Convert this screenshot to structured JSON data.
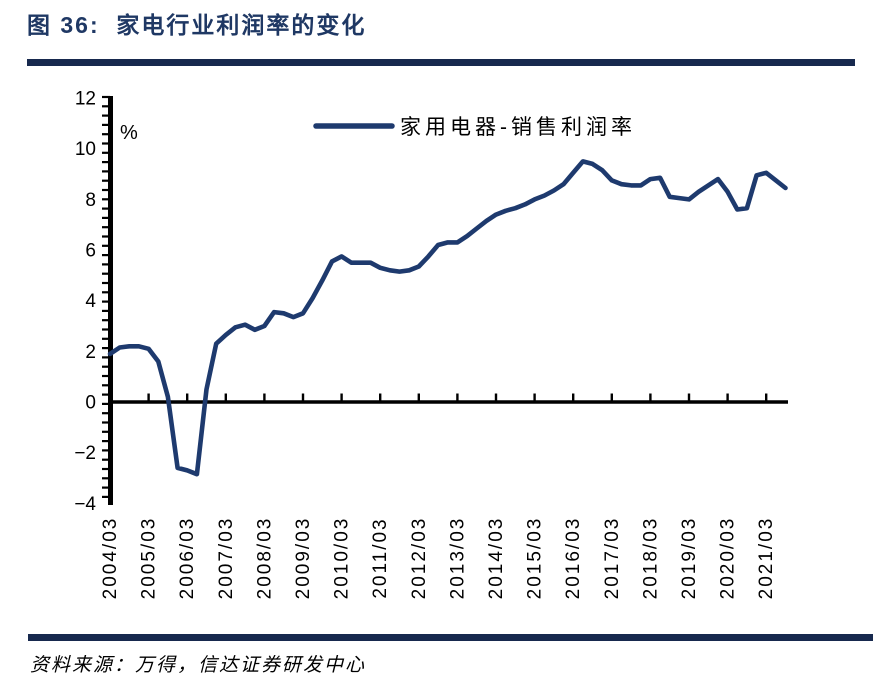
{
  "header": {
    "title": "图 36:  家电行业利润率的变化"
  },
  "footer": {
    "source": "资料来源：万得，信达证券研发中心"
  },
  "colors": {
    "accent_navy": "#1f3864",
    "rule_navy": "#17294e",
    "line_navy": "#1e3a6e",
    "axis_black": "#000000"
  },
  "chart_data": {
    "type": "line",
    "title": "图 36: 家电行业利润率的变化",
    "unit_label": "%",
    "xlabel": "",
    "ylabel": "%",
    "ylim": [
      -4,
      12
    ],
    "y_ticks": [
      -4,
      -2,
      0,
      2,
      4,
      6,
      8,
      10,
      12
    ],
    "grid": false,
    "legend_position": "top-center",
    "x_tick_labels": [
      "2004/03",
      "2005/03",
      "2006/03",
      "2007/03",
      "2008/03",
      "2009/03",
      "2010/03",
      "2011/03",
      "2012/03",
      "2013/03",
      "2014/03",
      "2015/03",
      "2016/03",
      "2017/03",
      "2018/03",
      "2019/03",
      "2020/03",
      "2021/03"
    ],
    "x": [
      "2004/03",
      "2004/06",
      "2004/09",
      "2004/12",
      "2005/03",
      "2005/06",
      "2005/09",
      "2005/12",
      "2006/03",
      "2006/06",
      "2006/09",
      "2006/12",
      "2007/03",
      "2007/06",
      "2007/09",
      "2007/12",
      "2008/03",
      "2008/06",
      "2008/09",
      "2008/12",
      "2009/03",
      "2009/06",
      "2009/09",
      "2009/12",
      "2010/03",
      "2010/06",
      "2010/09",
      "2010/12",
      "2011/03",
      "2011/06",
      "2011/09",
      "2011/12",
      "2012/03",
      "2012/06",
      "2012/09",
      "2012/12",
      "2013/03",
      "2013/06",
      "2013/09",
      "2013/12",
      "2014/03",
      "2014/06",
      "2014/09",
      "2014/12",
      "2015/03",
      "2015/06",
      "2015/09",
      "2015/12",
      "2016/03",
      "2016/06",
      "2016/09",
      "2016/12",
      "2017/03",
      "2017/06",
      "2017/09",
      "2017/12",
      "2018/03",
      "2018/06",
      "2018/09",
      "2018/12",
      "2019/03",
      "2019/06",
      "2019/09",
      "2019/12",
      "2020/03",
      "2020/06",
      "2020/09",
      "2020/12",
      "2021/03",
      "2021/06",
      "2021/09"
    ],
    "series": [
      {
        "name": "家用电器-销售利润率",
        "color": "#1e3a6e",
        "values": [
          1.9,
          2.15,
          2.2,
          2.2,
          2.1,
          1.6,
          0.2,
          -2.6,
          -2.7,
          -2.85,
          0.5,
          2.3,
          2.65,
          2.95,
          3.05,
          2.85,
          3.0,
          3.55,
          3.5,
          3.35,
          3.5,
          4.1,
          4.8,
          5.55,
          5.75,
          5.5,
          5.5,
          5.5,
          5.3,
          5.2,
          5.15,
          5.2,
          5.35,
          5.75,
          6.2,
          6.3,
          6.3,
          6.55,
          6.85,
          7.15,
          7.4,
          7.55,
          7.65,
          7.8,
          8.0,
          8.15,
          8.35,
          8.6,
          9.05,
          9.5,
          9.4,
          9.15,
          8.75,
          8.6,
          8.55,
          8.55,
          8.8,
          8.85,
          8.1,
          8.05,
          8.0,
          8.3,
          8.55,
          8.8,
          8.3,
          7.6,
          7.65,
          8.95,
          9.05,
          8.75,
          8.45
        ]
      }
    ]
  }
}
